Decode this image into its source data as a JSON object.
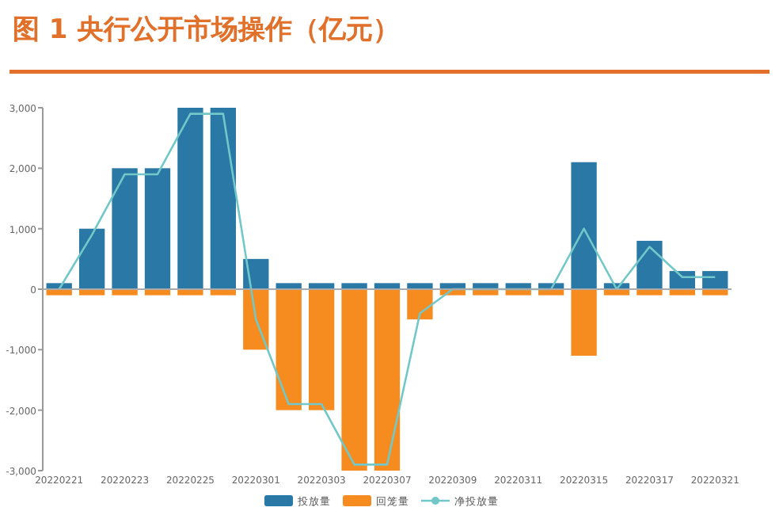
{
  "chart_data": {
    "type": "bar",
    "title": "图 1 央行公开市场操作（亿元）",
    "stacked": true,
    "categories": [
      "20220221",
      null,
      "20220223",
      null,
      "20220225",
      null,
      "20220301",
      null,
      "20220303",
      null,
      "20220307",
      null,
      "20220309",
      null,
      "20220311",
      null,
      "20220315",
      null,
      "20220317",
      null,
      "20220321"
    ],
    "series": [
      {
        "name": "投放量",
        "color": "#2a78a5",
        "values": [
          100,
          1000,
          2000,
          2000,
          3000,
          3000,
          500,
          100,
          100,
          100,
          100,
          100,
          100,
          100,
          100,
          100,
          2100,
          100,
          800,
          300,
          300
        ]
      },
      {
        "name": "回笼量",
        "color": "#f68b1f",
        "values": [
          -100,
          -100,
          -100,
          -100,
          -100,
          -100,
          -1000,
          -2000,
          -2000,
          -3000,
          -3000,
          -500,
          -100,
          -100,
          -100,
          -100,
          -1100,
          -100,
          -100,
          -100,
          -100
        ]
      },
      {
        "name": "净投放量",
        "type": "line",
        "color": "#72c8c8",
        "values": [
          0,
          900,
          1900,
          1900,
          2900,
          2900,
          -500,
          -1900,
          -1900,
          -2900,
          -2900,
          -400,
          0,
          0,
          0,
          0,
          1000,
          0,
          700,
          200,
          200
        ]
      }
    ],
    "ylim": [
      -3000,
      3000
    ],
    "yticks": [
      {
        "value": -3000,
        "label": "-3,000"
      },
      {
        "value": -2000,
        "label": "-2,000"
      },
      {
        "value": -1000,
        "label": "-1,000"
      },
      0,
      {
        "value": 1000,
        "label": "1,000"
      },
      {
        "value": 2000,
        "label": "2,000"
      },
      {
        "value": 3000,
        "label": "3,000"
      }
    ],
    "legend": "bottom"
  }
}
